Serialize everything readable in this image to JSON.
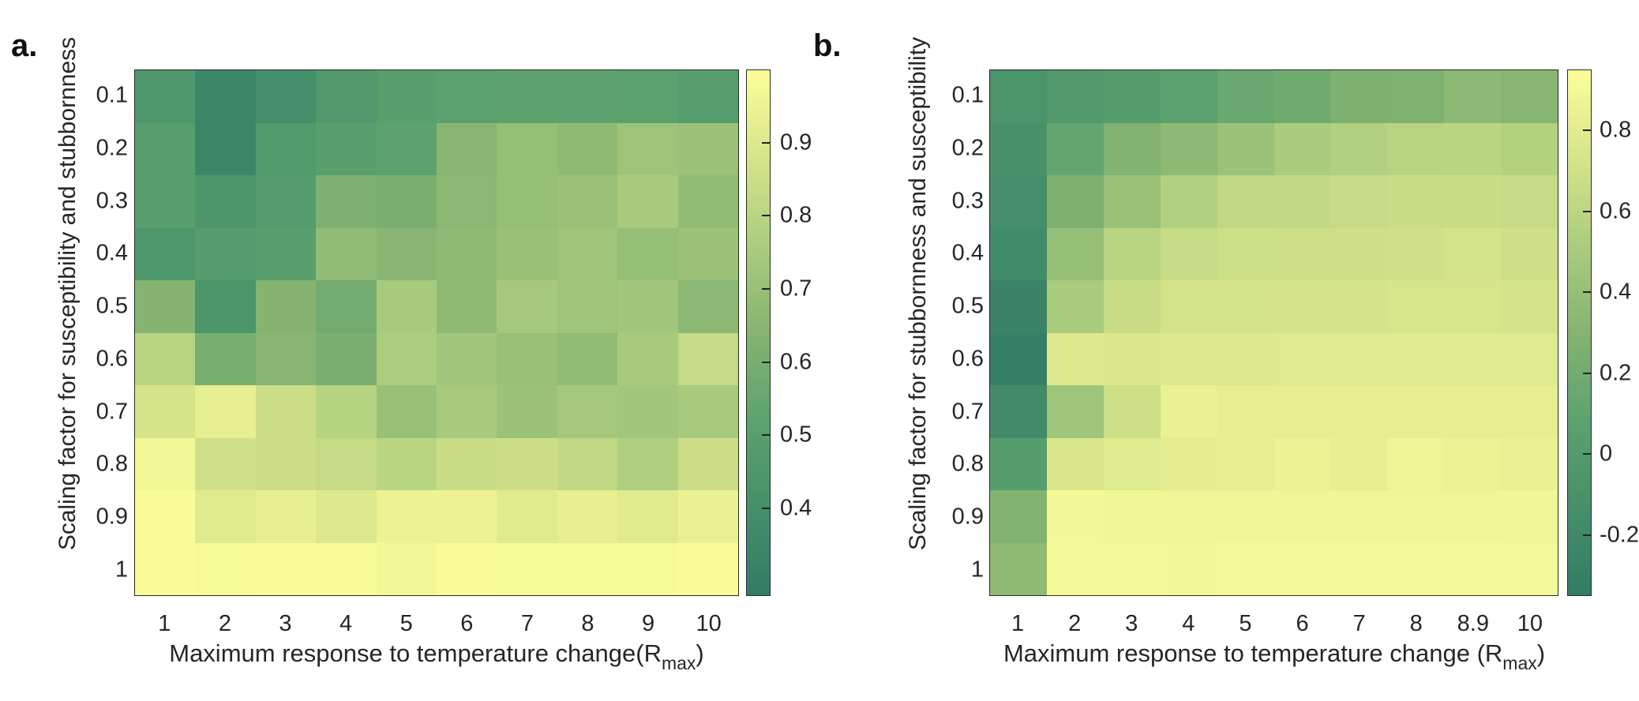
{
  "figure": {
    "background": "#ffffff"
  },
  "colormap": {
    "name": "dark-seagreen-to-pale-yellow",
    "stops": [
      {
        "t": 0.0,
        "color": "#337c66"
      },
      {
        "t": 0.17,
        "color": "#45906a"
      },
      {
        "t": 0.33,
        "color": "#5ca26e"
      },
      {
        "t": 0.5,
        "color": "#85b471"
      },
      {
        "t": 0.67,
        "color": "#accd7e"
      },
      {
        "t": 0.83,
        "color": "#d5e48a"
      },
      {
        "t": 1.0,
        "color": "#fdfe9a"
      }
    ]
  },
  "panels": [
    {
      "label": "a.",
      "ylabel": "Scaling factor for susceptibility and stubbornness",
      "xlabel": {
        "text": "Maximum response to temperature change(R",
        "subscript": "max",
        "close": ")"
      },
      "yticks": [
        "0.1",
        "0.2",
        "0.3",
        "0.4",
        "0.5",
        "0.6",
        "0.7",
        "0.8",
        "0.9",
        "1"
      ],
      "xticks": [
        "1",
        "2",
        "3",
        "4",
        "5",
        "6",
        "7",
        "8",
        "9",
        "10"
      ],
      "colorbar": {
        "vmin": 0.28,
        "vmax": 1.0,
        "ticks": [
          {
            "value": 0.9,
            "label": "0.9"
          },
          {
            "value": 0.8,
            "label": "0.8"
          },
          {
            "value": 0.7,
            "label": "0.7"
          },
          {
            "value": 0.6,
            "label": "0.6"
          },
          {
            "value": 0.5,
            "label": "0.5"
          },
          {
            "value": 0.4,
            "label": "0.4"
          }
        ]
      }
    },
    {
      "label": "b.",
      "ylabel": "Scaling factor for stubbornness and susceptibility",
      "xlabel": {
        "text": "Maximum response to temperature change (R",
        "subscript": "max",
        "close": ")"
      },
      "yticks": [
        "0.1",
        "0.2",
        "0.3",
        "0.4",
        "0.5",
        "0.6",
        "0.7",
        "0.8",
        "0.9",
        "1"
      ],
      "xticks": [
        "1",
        "2",
        "3",
        "4",
        "5",
        "6",
        "7",
        "8",
        "8.9",
        "10"
      ],
      "colorbar": {
        "vmin": -0.35,
        "vmax": 0.95,
        "ticks": [
          {
            "value": 0.8,
            "label": "0.8"
          },
          {
            "value": 0.6,
            "label": "0.6"
          },
          {
            "value": 0.4,
            "label": "0.4"
          },
          {
            "value": 0.2,
            "label": "0.2"
          },
          {
            "value": 0.0,
            "label": "0"
          },
          {
            "value": -0.2,
            "label": "-0.2"
          }
        ]
      }
    }
  ],
  "chart_data": [
    {
      "type": "heatmap",
      "title": "a.",
      "xlabel": "Maximum response to temperature change(Rmax)",
      "ylabel": "Scaling factor for susceptibility and stubbornness",
      "x": [
        1,
        2,
        3,
        4,
        5,
        6,
        7,
        8,
        9,
        10
      ],
      "y": [
        0.1,
        0.2,
        0.3,
        0.4,
        0.5,
        0.6,
        0.7,
        0.8,
        0.9,
        1
      ],
      "values": [
        [
          0.45,
          0.34,
          0.4,
          0.46,
          0.5,
          0.51,
          0.52,
          0.52,
          0.51,
          0.49
        ],
        [
          0.49,
          0.34,
          0.47,
          0.5,
          0.52,
          0.65,
          0.69,
          0.67,
          0.72,
          0.71
        ],
        [
          0.5,
          0.44,
          0.48,
          0.62,
          0.61,
          0.66,
          0.69,
          0.71,
          0.75,
          0.68
        ],
        [
          0.45,
          0.48,
          0.5,
          0.68,
          0.65,
          0.67,
          0.7,
          0.72,
          0.69,
          0.71
        ],
        [
          0.64,
          0.44,
          0.64,
          0.58,
          0.75,
          0.67,
          0.74,
          0.72,
          0.73,
          0.66
        ],
        [
          0.8,
          0.6,
          0.65,
          0.61,
          0.76,
          0.73,
          0.7,
          0.68,
          0.75,
          0.83
        ],
        [
          0.88,
          0.93,
          0.85,
          0.79,
          0.7,
          0.75,
          0.71,
          0.74,
          0.73,
          0.75
        ],
        [
          0.97,
          0.86,
          0.85,
          0.83,
          0.8,
          0.84,
          0.85,
          0.82,
          0.77,
          0.85
        ],
        [
          0.99,
          0.91,
          0.93,
          0.9,
          0.95,
          0.95,
          0.91,
          0.93,
          0.91,
          0.94
        ],
        [
          0.99,
          0.98,
          0.99,
          0.99,
          0.97,
          0.99,
          0.98,
          0.98,
          0.98,
          0.99
        ]
      ],
      "color_scale": {
        "min": 0.28,
        "max": 1.0,
        "colorbar_ticks": [
          0.9,
          0.8,
          0.7,
          0.6,
          0.5,
          0.4
        ]
      },
      "grid": false,
      "legend": "colorbar-right"
    },
    {
      "type": "heatmap",
      "title": "b.",
      "xlabel": "Maximum response to temperature change (Rmax)",
      "ylabel": "Scaling factor for stubbornness and susceptibility",
      "x": [
        1,
        2,
        3,
        4,
        5,
        6,
        7,
        8,
        8.9,
        10
      ],
      "y": [
        0.1,
        0.2,
        0.3,
        0.4,
        0.5,
        0.6,
        0.7,
        0.8,
        0.9,
        1
      ],
      "values": [
        [
          -0.08,
          -0.02,
          0.02,
          0.07,
          0.15,
          0.18,
          0.26,
          0.27,
          0.34,
          0.31
        ],
        [
          -0.12,
          0.12,
          0.29,
          0.34,
          0.42,
          0.51,
          0.55,
          0.58,
          0.59,
          0.56
        ],
        [
          -0.13,
          0.26,
          0.42,
          0.55,
          0.62,
          0.63,
          0.65,
          0.67,
          0.67,
          0.65
        ],
        [
          -0.16,
          0.39,
          0.59,
          0.65,
          0.68,
          0.69,
          0.69,
          0.7,
          0.72,
          0.69
        ],
        [
          -0.27,
          0.51,
          0.67,
          0.72,
          0.72,
          0.73,
          0.73,
          0.74,
          0.74,
          0.73
        ],
        [
          -0.32,
          0.77,
          0.76,
          0.77,
          0.77,
          0.78,
          0.78,
          0.78,
          0.78,
          0.78
        ],
        [
          -0.18,
          0.45,
          0.69,
          0.84,
          0.82,
          0.82,
          0.82,
          0.82,
          0.82,
          0.82
        ],
        [
          0.02,
          0.75,
          0.78,
          0.81,
          0.82,
          0.86,
          0.83,
          0.87,
          0.86,
          0.84
        ],
        [
          0.29,
          0.9,
          0.89,
          0.88,
          0.88,
          0.88,
          0.88,
          0.88,
          0.88,
          0.89
        ],
        [
          0.35,
          0.91,
          0.91,
          0.9,
          0.91,
          0.91,
          0.91,
          0.91,
          0.91,
          0.91
        ]
      ],
      "color_scale": {
        "min": -0.35,
        "max": 0.95,
        "colorbar_ticks": [
          0.8,
          0.6,
          0.4,
          0.2,
          0,
          -0.2
        ]
      },
      "grid": false,
      "legend": "colorbar-right"
    }
  ]
}
